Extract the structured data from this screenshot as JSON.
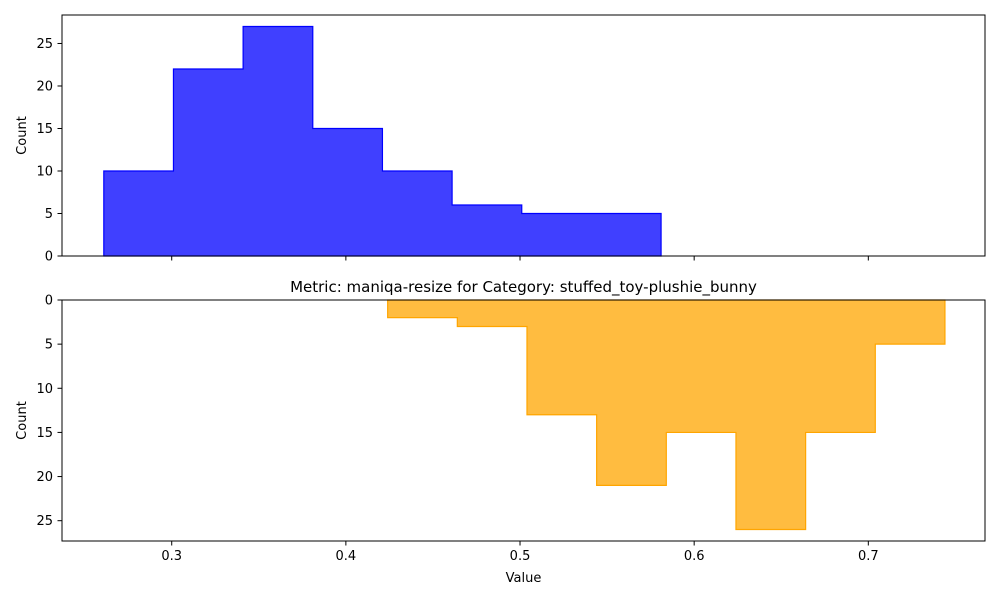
{
  "chart_data": [
    {
      "type": "histogram",
      "panel": "top",
      "title": "",
      "xlabel": "",
      "ylabel": "Count",
      "xlim": [
        0.237,
        0.767
      ],
      "ylim": [
        0,
        28.35
      ],
      "y_inverted": false,
      "x_ticks": [
        0.3,
        0.4,
        0.5,
        0.6,
        0.7
      ],
      "x_tick_labels_visible": false,
      "y_ticks": [
        0,
        5,
        10,
        15,
        20,
        25
      ],
      "series": [
        {
          "color": "#0000ff",
          "fill_alpha": 0.75,
          "bin_edges": [
            0.261,
            0.301,
            0.341,
            0.381,
            0.421,
            0.461,
            0.501,
            0.541,
            0.581
          ],
          "counts": [
            10,
            22,
            27,
            15,
            10,
            6,
            5,
            5
          ]
        }
      ],
      "grid": false
    },
    {
      "type": "histogram",
      "panel": "bottom",
      "title": "Metric: maniqa-resize for Category: stuffed_toy-plushie_bunny",
      "xlabel": "Value",
      "ylabel": "Count",
      "xlim": [
        0.237,
        0.767
      ],
      "ylim": [
        0,
        27.3
      ],
      "y_inverted": true,
      "x_ticks": [
        0.3,
        0.4,
        0.5,
        0.6,
        0.7
      ],
      "x_tick_labels_visible": true,
      "y_ticks": [
        0,
        5,
        10,
        15,
        20,
        25
      ],
      "series": [
        {
          "color": "#ffa500",
          "fill_alpha": 0.75,
          "bin_edges": [
            0.424,
            0.464,
            0.504,
            0.544,
            0.584,
            0.624,
            0.664,
            0.704,
            0.744
          ],
          "counts": [
            2,
            3,
            13,
            21,
            15,
            26,
            15,
            5
          ]
        }
      ],
      "grid": false
    }
  ]
}
